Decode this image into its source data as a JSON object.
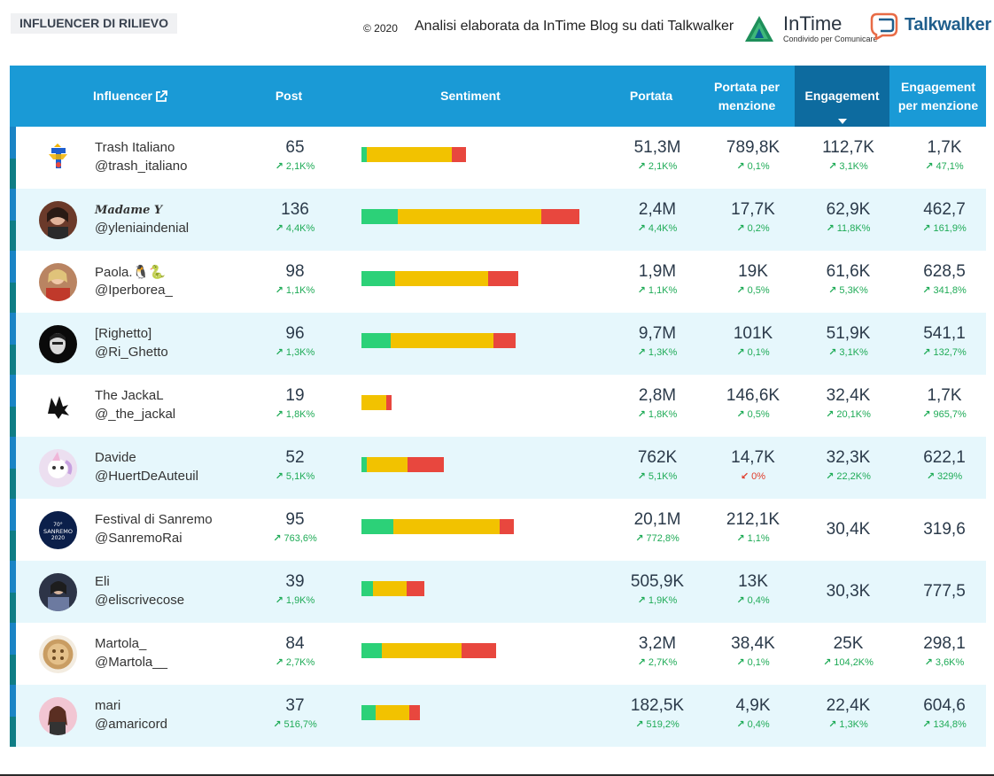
{
  "header": {
    "section_title": "INFLUENCER DI RILIEVO",
    "copyright": "© 2020",
    "credit": "Analisi elaborata da InTime Blog su dati Talkwalker",
    "intime_name": "InTime",
    "intime_tagline": "Condivido per Comunicare",
    "talkwalker_name": "Talkwalker"
  },
  "colors": {
    "header_bg": "#1a9ad6",
    "active_header_bg": "#0d6b9f",
    "positive": "#2cd178",
    "neutral": "#f2c200",
    "negative": "#e8473e",
    "up": "#1fab57",
    "down": "#e03b2a",
    "row_alt": "#e6f7fc"
  },
  "columns": {
    "influencer": "Influencer",
    "post": "Post",
    "sentiment": "Sentiment",
    "portata": "Portata",
    "portata_menzione": "Portata per menzione",
    "engagement": "Engagement",
    "engagement_menzione": "Engagement per menzione"
  },
  "rows": [
    {
      "name": "Trash Italiano",
      "handle": "@trash_italiano",
      "post": "65",
      "post_chg": "2,1K%",
      "sentiment": [
        6,
        96,
        16
      ],
      "portata": "51,3M",
      "portata_chg": "2,1K%",
      "pm": "789,8K",
      "pm_chg": "0,1%",
      "eng": "112,7K",
      "eng_chg": "3,1K%",
      "em": "1,7K",
      "em_chg": "47,1%"
    },
    {
      "name": "𝑴𝒂𝒅𝒂𝒎𝒆 𝒀",
      "handle": "@yleniaindenial",
      "post": "136",
      "post_chg": "4,4K%",
      "sentiment": [
        41,
        162,
        43
      ],
      "portata": "2,4M",
      "portata_chg": "4,4K%",
      "pm": "17,7K",
      "pm_chg": "0,2%",
      "eng": "62,9K",
      "eng_chg": "11,8K%",
      "em": "462,7",
      "em_chg": "161,9%"
    },
    {
      "name": "Paola.🐧🐍",
      "handle": "@Iperborea_",
      "post": "98",
      "post_chg": "1,1K%",
      "sentiment": [
        38,
        105,
        34
      ],
      "portata": "1,9M",
      "portata_chg": "1,1K%",
      "pm": "19K",
      "pm_chg": "0,5%",
      "eng": "61,6K",
      "eng_chg": "5,3K%",
      "em": "628,5",
      "em_chg": "341,8%"
    },
    {
      "name": "[Righetto]",
      "handle": "@Ri_Ghetto",
      "post": "96",
      "post_chg": "1,3K%",
      "sentiment": [
        33,
        116,
        25
      ],
      "portata": "9,7M",
      "portata_chg": "1,3K%",
      "pm": "101K",
      "pm_chg": "0,1%",
      "eng": "51,9K",
      "eng_chg": "3,1K%",
      "em": "541,1",
      "em_chg": "132,7%"
    },
    {
      "name": "The JackaL",
      "handle": "@_the_jackal",
      "post": "19",
      "post_chg": "1,8K%",
      "sentiment": [
        0,
        28,
        6
      ],
      "portata": "2,8M",
      "portata_chg": "1,8K%",
      "pm": "146,6K",
      "pm_chg": "0,5%",
      "eng": "32,4K",
      "eng_chg": "20,1K%",
      "em": "1,7K",
      "em_chg": "965,7%"
    },
    {
      "name": "Davide",
      "handle": "@HuertDeAuteuil",
      "post": "52",
      "post_chg": "5,1K%",
      "sentiment": [
        6,
        46,
        41
      ],
      "portata": "762K",
      "portata_chg": "5,1K%",
      "pm": "14,7K",
      "pm_chg": "0%",
      "pm_down": true,
      "eng": "32,3K",
      "eng_chg": "22,2K%",
      "em": "622,1",
      "em_chg": "329%"
    },
    {
      "name": "Festival di Sanremo",
      "handle": "@SanremoRai",
      "post": "95",
      "post_chg": "763,6%",
      "sentiment": [
        36,
        120,
        16
      ],
      "portata": "20,1M",
      "portata_chg": "772,8%",
      "pm": "212,1K",
      "pm_chg": "1,1%",
      "eng": "30,4K",
      "eng_chg": "",
      "em": "319,6",
      "em_chg": ""
    },
    {
      "name": "Eli",
      "handle": "@eliscrivecose",
      "post": "39",
      "post_chg": "1,9K%",
      "sentiment": [
        13,
        38,
        20
      ],
      "portata": "505,9K",
      "portata_chg": "1,9K%",
      "pm": "13K",
      "pm_chg": "0,4%",
      "eng": "30,3K",
      "eng_chg": "",
      "em": "777,5",
      "em_chg": ""
    },
    {
      "name": "Martola_",
      "handle": "@Martola__",
      "post": "84",
      "post_chg": "2,7K%",
      "sentiment": [
        23,
        90,
        39
      ],
      "portata": "3,2M",
      "portata_chg": "2,7K%",
      "pm": "38,4K",
      "pm_chg": "0,1%",
      "eng": "25K",
      "eng_chg": "104,2K%",
      "em": "298,1",
      "em_chg": "3,6K%"
    },
    {
      "name": "mari",
      "handle": "@amaricord",
      "post": "37",
      "post_chg": "516,7%",
      "sentiment": [
        16,
        38,
        12
      ],
      "portata": "182,5K",
      "portata_chg": "519,2%",
      "pm": "4,9K",
      "pm_chg": "0,4%",
      "eng": "22,4K",
      "eng_chg": "1,3K%",
      "em": "604,6",
      "em_chg": "134,8%"
    }
  ]
}
